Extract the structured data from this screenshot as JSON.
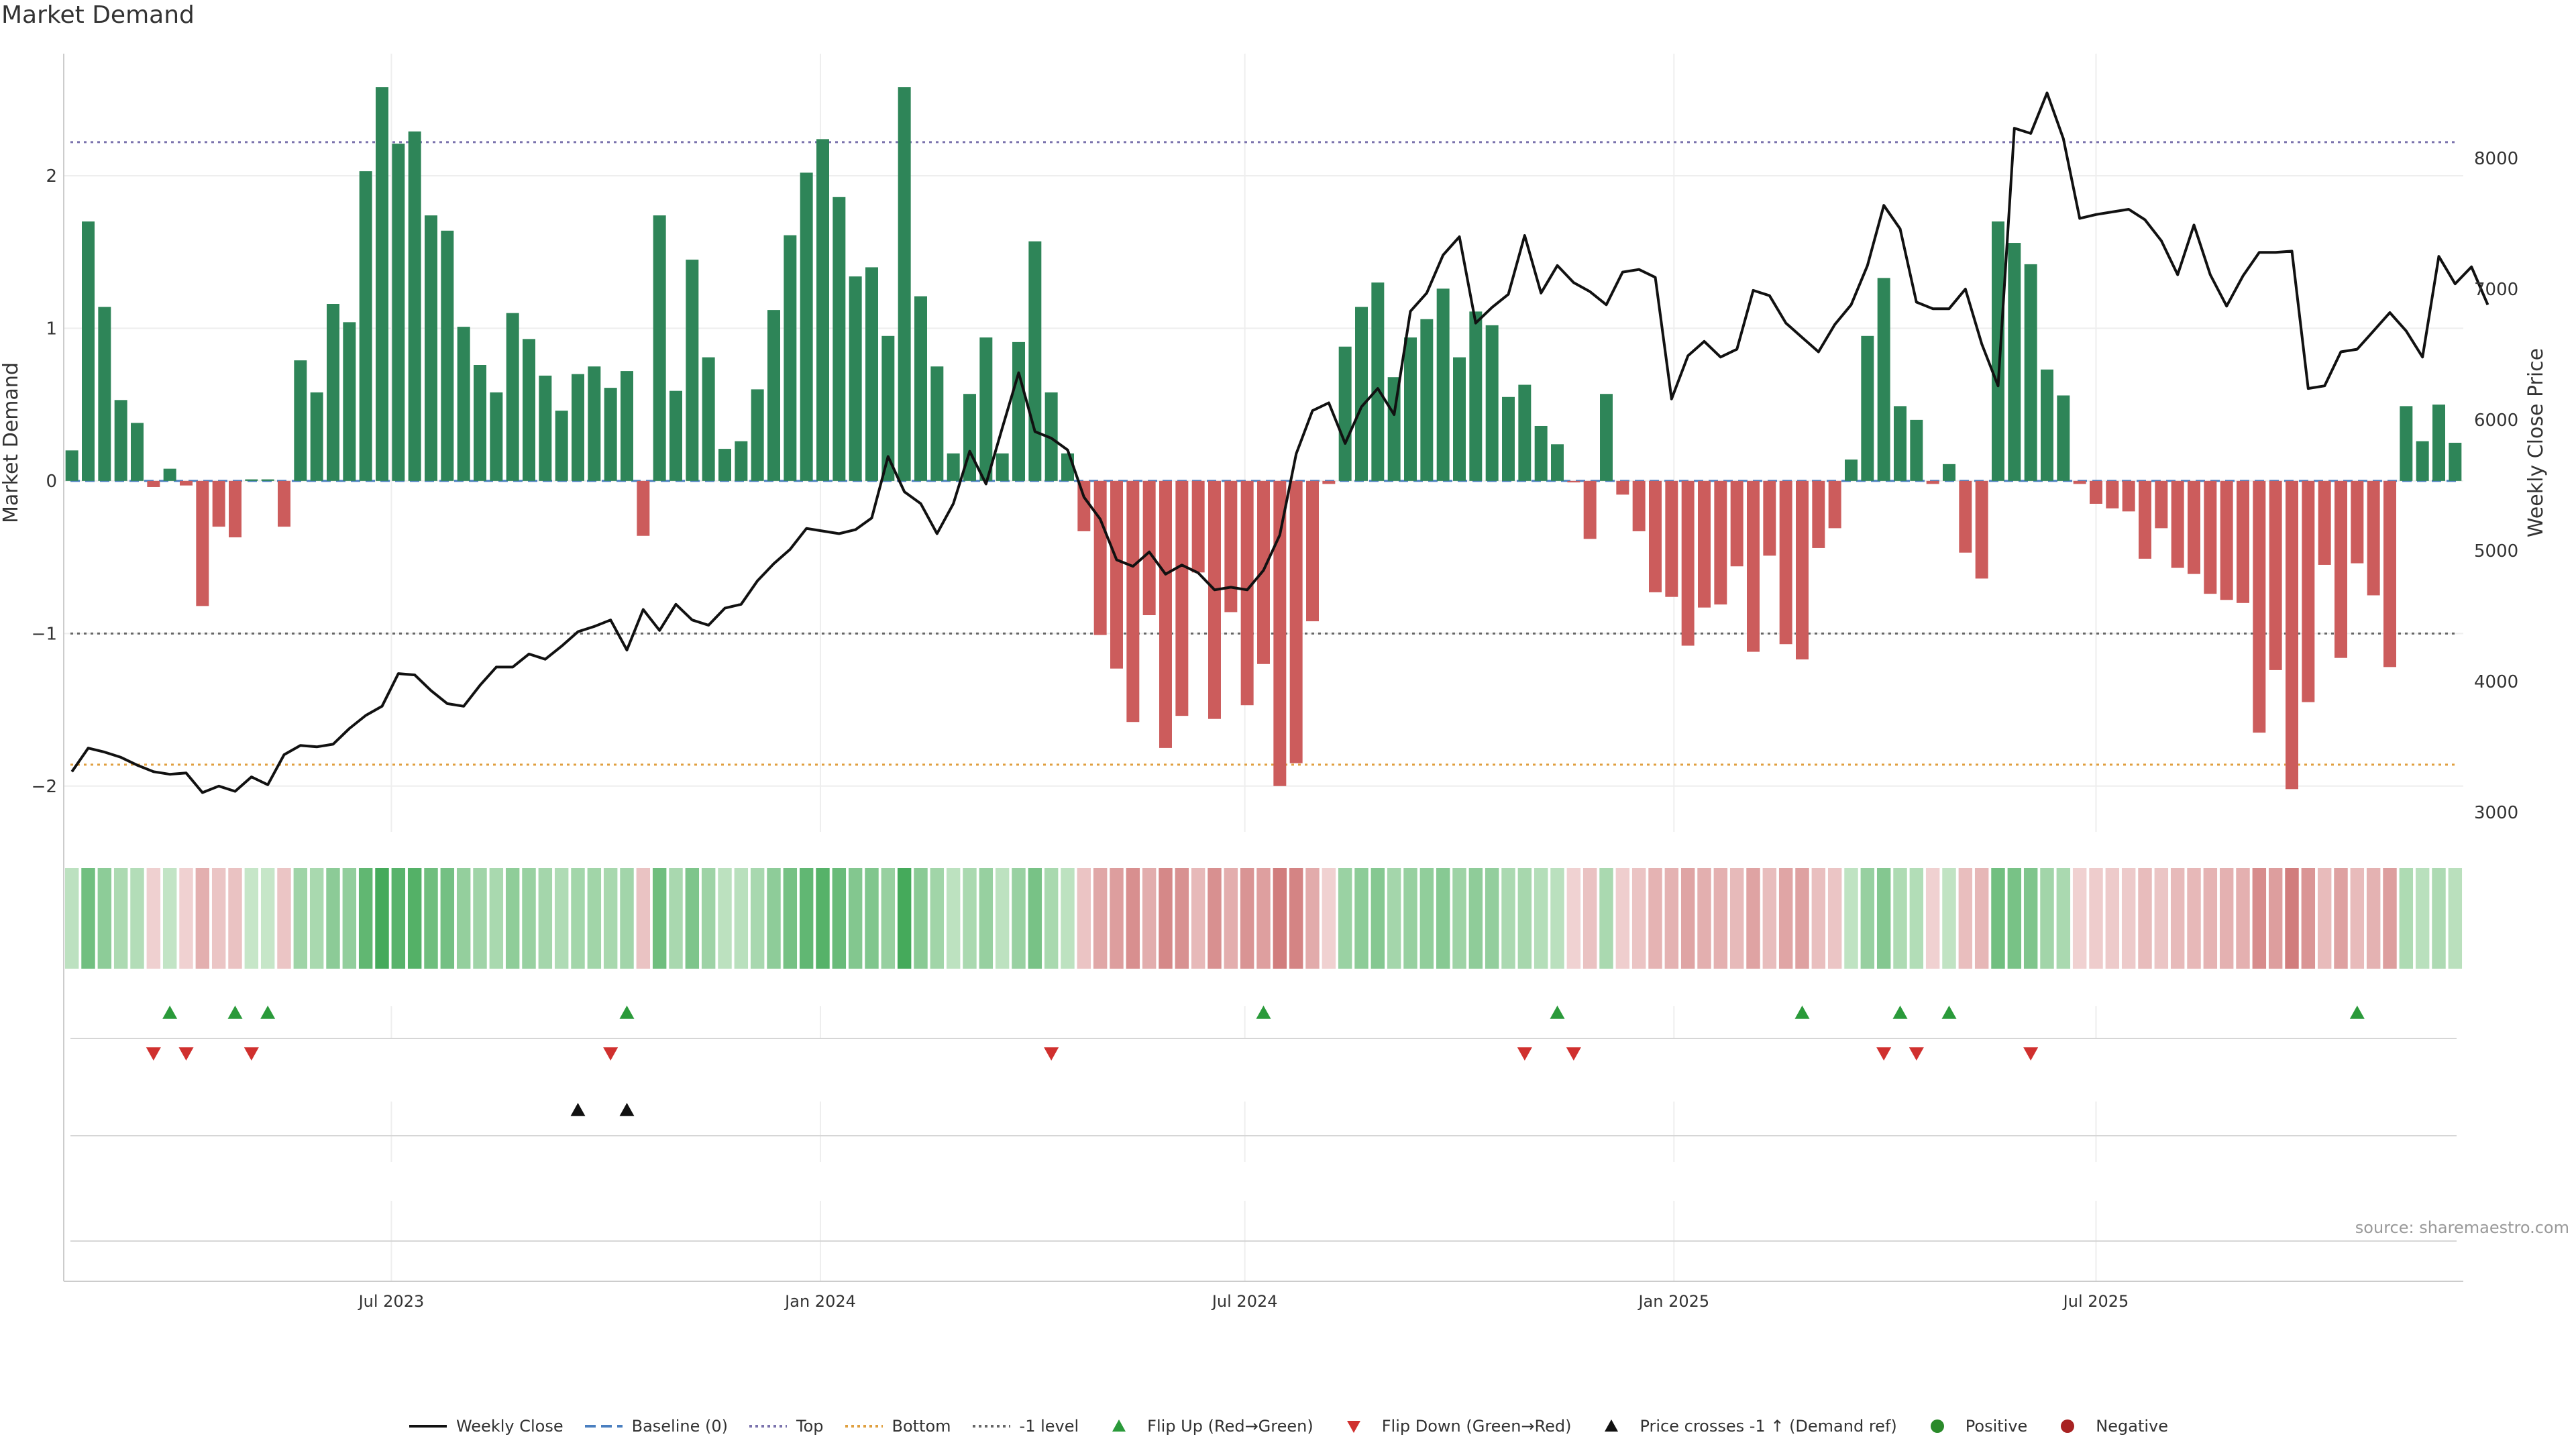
{
  "chart_data": {
    "type": "bar+line",
    "title": "Market Demand",
    "ylabel_left": "Market Demand",
    "ylabel_right": "Weekly Close Price",
    "ylim_left": [
      -2.3,
      2.8
    ],
    "ylim_right": [
      2850,
      8800
    ],
    "left_ticks": [
      -2,
      -1,
      0,
      1,
      2
    ],
    "left_tick_labels": [
      "−2",
      "−1",
      "0",
      "1",
      "2"
    ],
    "right_ticks": [
      3000,
      4000,
      5000,
      6000,
      7000,
      8000
    ],
    "right_tick_labels": [
      "3000",
      "4000",
      "5000",
      "6000",
      "7000",
      "8000"
    ],
    "reference_lines": {
      "top": 2.22,
      "bottom": -1.86,
      "minus_one": -1.0,
      "baseline": 0
    },
    "time_start": "2023-02-14",
    "week_days": 7,
    "x_ticks": [
      {
        "date": "2023-07-01",
        "label": "Jul 2023"
      },
      {
        "date": "2024-01-01",
        "label": "Jan 2024"
      },
      {
        "date": "2024-07-01",
        "label": "Jul 2024"
      },
      {
        "date": "2025-01-01",
        "label": "Jan 2025"
      },
      {
        "date": "2025-07-01",
        "label": "Jul 2025"
      }
    ],
    "demand": [
      0.2,
      1.7,
      1.14,
      0.53,
      0.38,
      -0.04,
      0.08,
      -0.03,
      -0.82,
      -0.3,
      -0.37,
      0.01,
      0.01,
      -0.3,
      0.79,
      0.58,
      1.16,
      1.04,
      2.03,
      2.58,
      2.21,
      2.29,
      1.74,
      1.64,
      1.01,
      0.76,
      0.58,
      1.1,
      0.93,
      0.69,
      0.46,
      0.7,
      0.75,
      0.61,
      0.72,
      -0.36,
      1.74,
      0.59,
      1.45,
      0.81,
      0.21,
      0.26,
      0.6,
      1.12,
      1.61,
      2.02,
      2.24,
      1.86,
      1.34,
      1.4,
      0.95,
      2.58,
      1.21,
      0.75,
      0.18,
      0.57,
      0.94,
      0.18,
      0.91,
      1.57,
      0.58,
      0.18,
      -0.33,
      -1.01,
      -1.23,
      -1.58,
      -0.88,
      -1.75,
      -1.54,
      -0.6,
      -1.56,
      -0.86,
      -1.47,
      -1.2,
      -2.0,
      -1.85,
      -0.92,
      -0.02,
      0.88,
      1.14,
      1.3,
      0.68,
      0.94,
      1.06,
      1.26,
      0.81,
      1.11,
      1.02,
      0.55,
      0.63,
      0.36,
      0.24,
      -0.01,
      -0.38,
      0.57,
      -0.09,
      -0.33,
      -0.73,
      -0.76,
      -1.08,
      -0.83,
      -0.81,
      -0.56,
      -1.12,
      -0.49,
      -1.07,
      -1.17,
      -0.44,
      -0.31,
      0.14,
      0.95,
      1.33,
      0.49,
      0.4,
      -0.02,
      0.11,
      -0.47,
      -0.64,
      1.7,
      1.56,
      1.42,
      0.73,
      0.56,
      -0.02,
      -0.15,
      -0.18,
      -0.2,
      -0.51,
      -0.31,
      -0.57,
      -0.61,
      -0.74,
      -0.78,
      -0.8,
      -1.65,
      -1.24,
      -2.02,
      -1.45,
      -0.55,
      -1.16,
      -0.54,
      -0.75,
      -1.22,
      0.49,
      0.26,
      0.5,
      0.25
    ],
    "price": [
      3310,
      3490,
      3460,
      3420,
      3360,
      3310,
      3290,
      3300,
      3150,
      3200,
      3160,
      3270,
      3210,
      3440,
      3510,
      3500,
      3520,
      3640,
      3740,
      3810,
      4060,
      4050,
      3930,
      3830,
      3810,
      3970,
      4110,
      4110,
      4210,
      4170,
      4270,
      4380,
      4420,
      4470,
      4240,
      4550,
      4390,
      4590,
      4470,
      4430,
      4560,
      4590,
      4770,
      4900,
      5010,
      5170,
      5150,
      5130,
      5160,
      5250,
      5720,
      5450,
      5360,
      5130,
      5360,
      5760,
      5510,
      5940,
      6360,
      5910,
      5860,
      5770,
      5410,
      5240,
      4930,
      4880,
      4990,
      4820,
      4890,
      4830,
      4700,
      4720,
      4700,
      4850,
      5120,
      5740,
      6070,
      6130,
      5820,
      6100,
      6240,
      6040,
      6830,
      6970,
      7260,
      7400,
      6740,
      6860,
      6960,
      7410,
      6970,
      7180,
      7050,
      6980,
      6880,
      7130,
      7150,
      7090,
      6160,
      6490,
      6600,
      6480,
      6540,
      6990,
      6950,
      6740,
      6630,
      6520,
      6730,
      6880,
      7180,
      7640,
      7460,
      6900,
      6850,
      6850,
      7000,
      6580,
      6260,
      8230,
      8190,
      8500,
      8150,
      7540,
      7570,
      7590,
      7610,
      7530,
      7370,
      7110,
      7490,
      7110,
      6870,
      7100,
      7280,
      7280,
      7290,
      6240,
      6260,
      6520,
      6540,
      6680,
      6820,
      6680,
      6480,
      7250,
      7040,
      7170,
      6880
    ],
    "flip_up": [
      6,
      10,
      12,
      34,
      73,
      91,
      106,
      112,
      115,
      140
    ],
    "flip_down": [
      5,
      7,
      11,
      33,
      60,
      89,
      92,
      111,
      113,
      120
    ],
    "price_cross_up": [
      31,
      34
    ],
    "legend": [
      {
        "label": "Weekly Close",
        "kind": "line",
        "color": "#111111"
      },
      {
        "label": "Baseline (0)",
        "kind": "dash",
        "color": "#4a7fc0"
      },
      {
        "label": "Top",
        "kind": "dot",
        "color": "#7b73ad"
      },
      {
        "label": "Bottom",
        "kind": "dot",
        "color": "#e0a040"
      },
      {
        "label": "-1 level",
        "kind": "dot",
        "color": "#666666"
      },
      {
        "label": "Flip Up (Red→Green)",
        "kind": "tri-up",
        "color": "#2a9a3a"
      },
      {
        "label": "Flip Down (Green→Red)",
        "kind": "tri-down",
        "color": "#d0302e"
      },
      {
        "label": "Price crosses -1 ↑ (Demand ref)",
        "kind": "tri-up",
        "color": "#111111"
      },
      {
        "label": "Positive",
        "kind": "circle",
        "color": "#2a8a2a"
      },
      {
        "label": "Negative",
        "kind": "circle",
        "color": "#a82222"
      }
    ]
  },
  "source": "source: sharemaestro.com",
  "colors": {
    "positive_bar": "#2e8558",
    "negative_bar": "#cc5c5c",
    "grid": "#eeeeee",
    "axis": "#cccccc"
  }
}
